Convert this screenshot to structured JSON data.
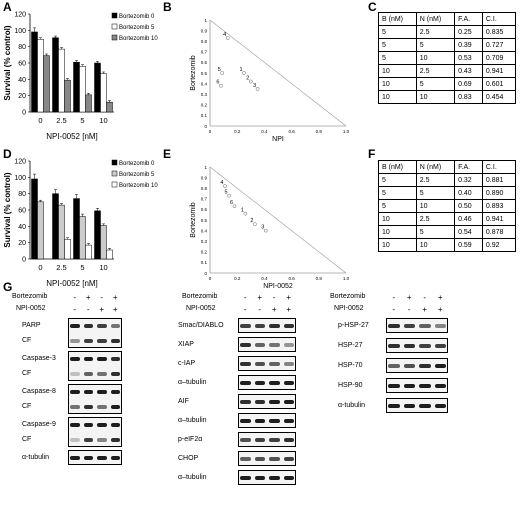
{
  "panels": {
    "A": "A",
    "B": "B",
    "C": "C",
    "D": "D",
    "E": "E",
    "F": "F",
    "G": "G"
  },
  "chart_data": [
    {
      "panel": "A",
      "type": "bar",
      "categories": [
        "0",
        "2.5",
        "5",
        "10"
      ],
      "series": [
        {
          "name": "Bortezomib 0",
          "color": "#000000",
          "values": [
            98,
            91,
            61,
            60
          ],
          "errors": [
            5,
            2,
            2,
            2
          ]
        },
        {
          "name": "Bortezomib 5",
          "color": "#ffffff",
          "values": [
            89,
            77,
            56,
            47
          ],
          "errors": [
            2,
            2,
            2,
            2
          ]
        },
        {
          "name": "Bortezomib 10",
          "color": "#888888",
          "values": [
            69,
            39,
            21,
            12
          ],
          "errors": [
            2,
            2,
            2,
            2
          ]
        }
      ],
      "xlabel": "NPI-0052 [nM]",
      "ylabel": "Survival (% control)",
      "ylim": [
        0,
        120
      ],
      "yticks": [
        0,
        20,
        40,
        60,
        80,
        100,
        120
      ],
      "legend": "top-right"
    },
    {
      "panel": "B",
      "type": "scatter",
      "xlabel": "NPI",
      "ylabel": "Bortezomib",
      "xlim": [
        0,
        1
      ],
      "ylim": [
        0,
        1
      ],
      "xticks": [
        "0",
        "0.2",
        "0.4",
        "0.6",
        "0.8",
        "1.0"
      ],
      "yticks": [
        "0",
        "0.1",
        "0.2",
        "0.3",
        "0.4",
        "0.5",
        "0.6",
        "0.7",
        "0.8",
        "0.9",
        "1"
      ],
      "points": [
        {
          "label": "1",
          "x": 0.25,
          "y": 0.5
        },
        {
          "label": "2",
          "x": 0.3,
          "y": 0.42
        },
        {
          "label": "3",
          "x": 0.35,
          "y": 0.35
        },
        {
          "label": "4",
          "x": 0.13,
          "y": 0.83
        },
        {
          "label": "5",
          "x": 0.09,
          "y": 0.5
        },
        {
          "label": "6",
          "x": 0.08,
          "y": 0.38
        }
      ]
    },
    {
      "panel": "D",
      "type": "bar",
      "categories": [
        "0",
        "2.5",
        "5",
        "10"
      ],
      "series": [
        {
          "name": "Bortezomib 0",
          "color": "#000000",
          "values": [
            98,
            80,
            74,
            59
          ],
          "errors": [
            6,
            5,
            5,
            3
          ]
        },
        {
          "name": "Bortezomib 5",
          "color": "#cccccc",
          "values": [
            70,
            66,
            52,
            41
          ],
          "errors": [
            2,
            2,
            3,
            2
          ]
        },
        {
          "name": "Bortezomib 10",
          "color": "#ffffff",
          "values": [
            0,
            24,
            17,
            11
          ],
          "errors": [
            0,
            2,
            2,
            2
          ]
        }
      ],
      "xlabel": "NPI-0052 [nM]",
      "ylabel": "Survival (% control)",
      "ylim": [
        0,
        120
      ],
      "yticks": [
        0,
        20,
        40,
        60,
        80,
        100,
        120
      ],
      "legend": "top-right"
    },
    {
      "panel": "E",
      "type": "scatter",
      "xlabel": "NPI-0052",
      "ylabel": "Bortezomib",
      "xlim": [
        0,
        1
      ],
      "ylim": [
        0,
        1
      ],
      "xticks": [
        "0",
        "0.2",
        "0.4",
        "0.6",
        "0.8",
        "1.0"
      ],
      "yticks": [
        "0",
        "0.1",
        "0.2",
        "0.3",
        "0.4",
        "0.5",
        "0.6",
        "0.7",
        "0.8",
        "0.9",
        "1"
      ],
      "points": [
        {
          "label": "1",
          "x": 0.26,
          "y": 0.56
        },
        {
          "label": "2",
          "x": 0.33,
          "y": 0.46
        },
        {
          "label": "3",
          "x": 0.41,
          "y": 0.4
        },
        {
          "label": "4",
          "x": 0.11,
          "y": 0.82
        },
        {
          "label": "5",
          "x": 0.14,
          "y": 0.73
        },
        {
          "label": "6",
          "x": 0.18,
          "y": 0.63
        }
      ]
    }
  ],
  "tables": {
    "C": {
      "headers": [
        "B (nM)",
        "N (nM)",
        "F.A.",
        "C.I."
      ],
      "rows": [
        [
          "5",
          "2.5",
          "0.25",
          "0.835"
        ],
        [
          "5",
          "5",
          "0.39",
          "0.727"
        ],
        [
          "5",
          "10",
          "0.53",
          "0.709"
        ],
        [
          "10",
          "2.5",
          "0.43",
          "0.941"
        ],
        [
          "10",
          "5",
          "0.69",
          "0.601"
        ],
        [
          "10",
          "10",
          "0.83",
          "0.454"
        ]
      ]
    },
    "F": {
      "headers": [
        "B (nM)",
        "N (nM)",
        "F.A.",
        "C.I."
      ],
      "rows": [
        [
          "5",
          "2.5",
          "0.32",
          "0.881"
        ],
        [
          "5",
          "5",
          "0.40",
          "0.890"
        ],
        [
          "5",
          "10",
          "0.50",
          "0.893"
        ],
        [
          "10",
          "2.5",
          "0.46",
          "0.941"
        ],
        [
          "10",
          "5",
          "0.54",
          "0.878"
        ],
        [
          "10",
          "10",
          "0.59",
          "0.92"
        ]
      ]
    }
  },
  "blots": {
    "treatment_labels": [
      "Bortezomib",
      "NPI-0052"
    ],
    "bortezomib_signs": [
      "-",
      "+",
      "-",
      "+"
    ],
    "npi_signs": [
      "-",
      "-",
      "+",
      "+"
    ],
    "left": {
      "blots": [
        {
          "rows": [
            "PARP",
            "CF"
          ],
          "intensity": [
            [
              1,
              0.9,
              0.8,
              0.5
            ],
            [
              0.3,
              0.8,
              0.8,
              0.9
            ]
          ]
        },
        {
          "rows": [
            "Caspase-3",
            "CF"
          ],
          "intensity": [
            [
              1,
              1,
              1,
              0.9
            ],
            [
              0.05,
              0.6,
              0.5,
              0.9
            ]
          ]
        },
        {
          "rows": [
            "Caspase-8",
            "CF"
          ],
          "intensity": [
            [
              1,
              1,
              1,
              1
            ],
            [
              0.5,
              0.9,
              0.5,
              1
            ]
          ]
        },
        {
          "rows": [
            "Caspase-9",
            "CF"
          ],
          "intensity": [
            [
              1,
              1,
              1,
              1
            ],
            [
              0.05,
              0.8,
              0.4,
              0.9
            ]
          ]
        },
        {
          "rows": [
            "α-tubulin"
          ],
          "intensity": [
            [
              1,
              1,
              1,
              1
            ]
          ]
        }
      ]
    },
    "middle": {
      "blots": [
        {
          "rows": [
            "Smac/DIABLO"
          ],
          "intensity": [
            [
              0.8,
              0.8,
              0.9,
              0.9
            ]
          ]
        },
        {
          "rows": [
            "XIAP"
          ],
          "intensity": [
            [
              0.9,
              0.6,
              0.5,
              0.3
            ]
          ]
        },
        {
          "rows": [
            "c-IAP"
          ],
          "intensity": [
            [
              0.9,
              0.7,
              0.6,
              0.4
            ]
          ]
        },
        {
          "rows": [
            "α–tubulin"
          ],
          "intensity": [
            [
              1,
              1,
              1,
              1
            ]
          ]
        },
        {
          "rows": [
            "AIF"
          ],
          "intensity": [
            [
              0.9,
              0.9,
              1,
              1
            ]
          ]
        },
        {
          "rows": [
            "α–tubulin"
          ],
          "intensity": [
            [
              1,
              1,
              1,
              1
            ]
          ]
        },
        {
          "rows": [
            "p-eIF2α"
          ],
          "intensity": [
            [
              0.7,
              0.8,
              0.8,
              0.9
            ]
          ]
        },
        {
          "rows": [
            "CHOP"
          ],
          "intensity": [
            [
              0.6,
              0.7,
              0.7,
              0.8
            ]
          ]
        },
        {
          "rows": [
            "α–tubulin"
          ],
          "intensity": [
            [
              1,
              1,
              1,
              1
            ]
          ]
        }
      ]
    },
    "right": {
      "blots": [
        {
          "rows": [
            "p-HSP-27"
          ],
          "intensity": [
            [
              0.9,
              0.8,
              0.6,
              0.4
            ]
          ]
        },
        {
          "rows": [
            "HSP-27"
          ],
          "intensity": [
            [
              0.9,
              0.9,
              0.8,
              0.8
            ]
          ]
        },
        {
          "rows": [
            "HSP-70"
          ],
          "intensity": [
            [
              0.6,
              0.7,
              0.9,
              1
            ]
          ]
        },
        {
          "rows": [
            "HSP-90"
          ],
          "intensity": [
            [
              1,
              1,
              1,
              1
            ]
          ]
        },
        {
          "rows": [
            "α-tubulin"
          ],
          "intensity": [
            [
              1,
              1,
              1,
              1
            ]
          ]
        }
      ]
    }
  }
}
